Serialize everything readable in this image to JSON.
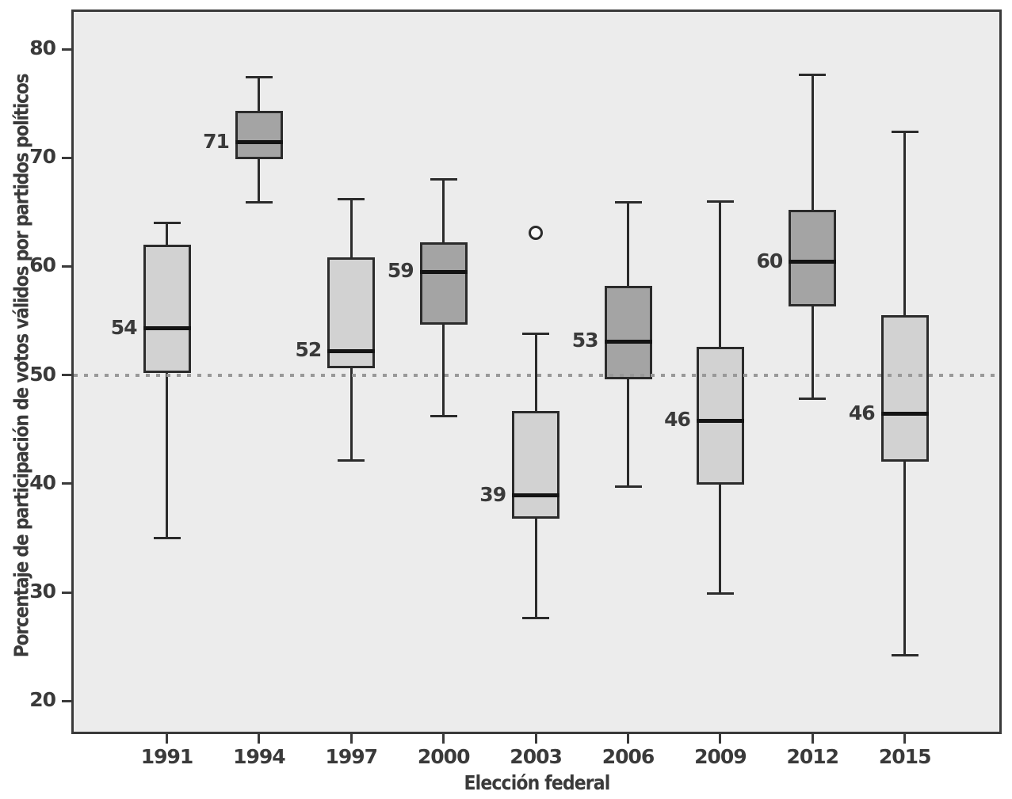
{
  "chart_data": {
    "type": "box",
    "title": "",
    "xlabel": "Elección federal",
    "ylabel": "Porcentaje de participación de votos válidos por partidos políticos",
    "yticks": [
      80,
      70,
      60,
      50,
      40,
      30,
      20
    ],
    "ylim": [
      16.8,
      83.6
    ],
    "grid": false,
    "legend": "none",
    "reference_line": {
      "value": 50,
      "style": "dotted"
    },
    "categories": [
      "1991",
      "1994",
      "1997",
      "2000",
      "2003",
      "2006",
      "2009",
      "2012",
      "2015"
    ],
    "boxes": [
      {
        "category": "1991",
        "median_label": "54",
        "median": 54.3,
        "q1": 50.2,
        "q3": 62.0,
        "whisker_low": 35.0,
        "whisker_high": 64.0,
        "shade": "light",
        "outliers": []
      },
      {
        "category": "1994",
        "median_label": "71",
        "median": 71.4,
        "q1": 69.9,
        "q3": 74.3,
        "whisker_low": 65.9,
        "whisker_high": 77.4,
        "shade": "dark",
        "outliers": []
      },
      {
        "category": "1997",
        "median_label": "52",
        "median": 52.2,
        "q1": 50.6,
        "q3": 60.8,
        "whisker_low": 42.1,
        "whisker_high": 66.2,
        "shade": "light",
        "outliers": []
      },
      {
        "category": "2000",
        "median_label": "59",
        "median": 59.5,
        "q1": 54.6,
        "q3": 62.2,
        "whisker_low": 46.2,
        "whisker_high": 68.0,
        "shade": "dark",
        "outliers": []
      },
      {
        "category": "2003",
        "median_label": "39",
        "median": 38.9,
        "q1": 36.8,
        "q3": 46.7,
        "whisker_low": 27.6,
        "whisker_high": 53.8,
        "shade": "light",
        "outliers": [
          63.1
        ]
      },
      {
        "category": "2006",
        "median_label": "53",
        "median": 53.1,
        "q1": 49.6,
        "q3": 58.2,
        "whisker_low": 39.7,
        "whisker_high": 65.9,
        "shade": "dark",
        "outliers": []
      },
      {
        "category": "2009",
        "median_label": "46",
        "median": 45.8,
        "q1": 39.9,
        "q3": 52.6,
        "whisker_low": 29.9,
        "whisker_high": 66.0,
        "shade": "light",
        "outliers": []
      },
      {
        "category": "2012",
        "median_label": "60",
        "median": 60.4,
        "q1": 56.3,
        "q3": 65.2,
        "whisker_low": 47.8,
        "whisker_high": 77.6,
        "shade": "dark",
        "outliers": []
      },
      {
        "category": "2015",
        "median_label": "46",
        "median": 46.4,
        "q1": 42.0,
        "q3": 55.5,
        "whisker_low": 24.2,
        "whisker_high": 72.4,
        "shade": "light",
        "outliers": []
      }
    ],
    "colors": {
      "box_light": "#d2d2d2",
      "box_dark": "#a4a4a4",
      "box_border": "#2b2b2b",
      "median_line": "#141414",
      "whisker": "#2b2b2b",
      "plot_background": "#ececec",
      "frame": "#3a3a3a",
      "text": "#3a3a3a",
      "reference_line": "#999999"
    }
  }
}
